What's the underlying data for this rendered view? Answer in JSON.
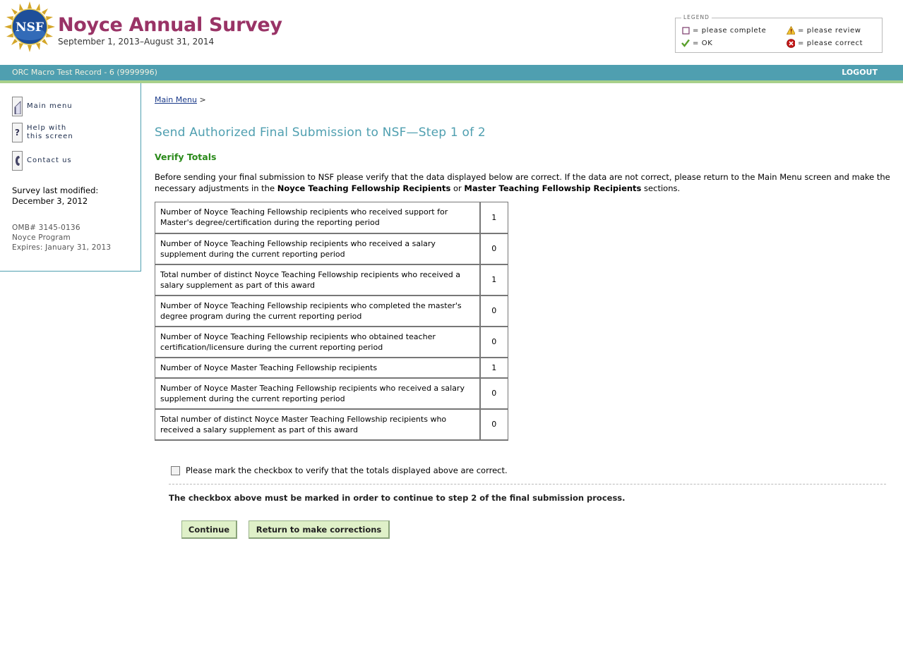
{
  "header": {
    "logo_text": "NSF",
    "title": "Noyce Annual Survey",
    "dates": "September 1, 2013–August 31, 2014"
  },
  "legend": {
    "title": "LEGEND",
    "items": [
      {
        "icon": "empty-checkbox-icon",
        "label": "= please complete"
      },
      {
        "icon": "warning-triangle-icon",
        "label": "= please review"
      },
      {
        "icon": "green-check-icon",
        "label": "= OK"
      },
      {
        "icon": "red-x-circle-icon",
        "label": "= please correct"
      }
    ]
  },
  "topbar": {
    "record": "ORC Macro Test Record - 6 (9999996)",
    "logout": "LOGOUT",
    "color": "#4f9fb0",
    "accent": "#a8d08a"
  },
  "sidebar": {
    "items": [
      {
        "icon": "main-menu-icon",
        "label": "Main menu"
      },
      {
        "icon": "help-icon",
        "label": "Help with\nthis screen"
      },
      {
        "icon": "phone-icon",
        "label": "Contact us"
      }
    ],
    "survey_modified_label": "Survey last modified:",
    "survey_modified_date": "December 3, 2012",
    "omb": "OMB# 3145-0136",
    "program": "Noyce Program",
    "expires": "Expires: January 31, 2013"
  },
  "breadcrumb": {
    "link": "Main Menu",
    "sep": ">"
  },
  "page": {
    "title": "Send Authorized Final Submission to NSF—Step 1 of 2",
    "section": "Verify Totals",
    "instr_1": "Before sending your final submission to NSF please verify that the data displayed below are correct. If the data are not correct, please return to the Main Menu screen and make the necessary adjustments in the ",
    "instr_b1": "Noyce Teaching Fellowship Recipients",
    "instr_2": " or ",
    "instr_b2": "Master Teaching Fellowship Recipients",
    "instr_3": " sections."
  },
  "totals": [
    {
      "label": "Number of Noyce Teaching Fellowship recipients who received support for Master's degree/certification during the reporting period",
      "value": "1"
    },
    {
      "label": "Number of Noyce Teaching Fellowship recipients who received a salary supplement during the current reporting period",
      "value": "0"
    },
    {
      "label": "Total number of distinct Noyce Teaching Fellowship recipients who received a salary supplement as part of this award",
      "value": "1"
    },
    {
      "label": "Number of Noyce Teaching Fellowship recipients who completed the master's degree program during the current reporting period",
      "value": "0"
    },
    {
      "label": "Number of Noyce Teaching Fellowship recipients who obtained teacher certification/licensure during the current reporting period",
      "value": "0"
    },
    {
      "label": "Number of Noyce Master Teaching Fellowship recipients",
      "value": "1"
    },
    {
      "label": "Number of Noyce Master Teaching Fellowship recipients who received a salary supplement during the current reporting period",
      "value": "0"
    },
    {
      "label": "Total number of distinct Noyce Master Teaching Fellowship recipients who received a salary supplement as part of this award",
      "value": "0"
    }
  ],
  "verify": {
    "checkbox_label": "Please mark the checkbox to verify that the totals displayed above are correct.",
    "checked": false,
    "warning": "The checkbox above must be marked in order to continue to step 2 of the final submission process."
  },
  "buttons": {
    "continue": "Continue",
    "return": "Return to make corrections"
  }
}
